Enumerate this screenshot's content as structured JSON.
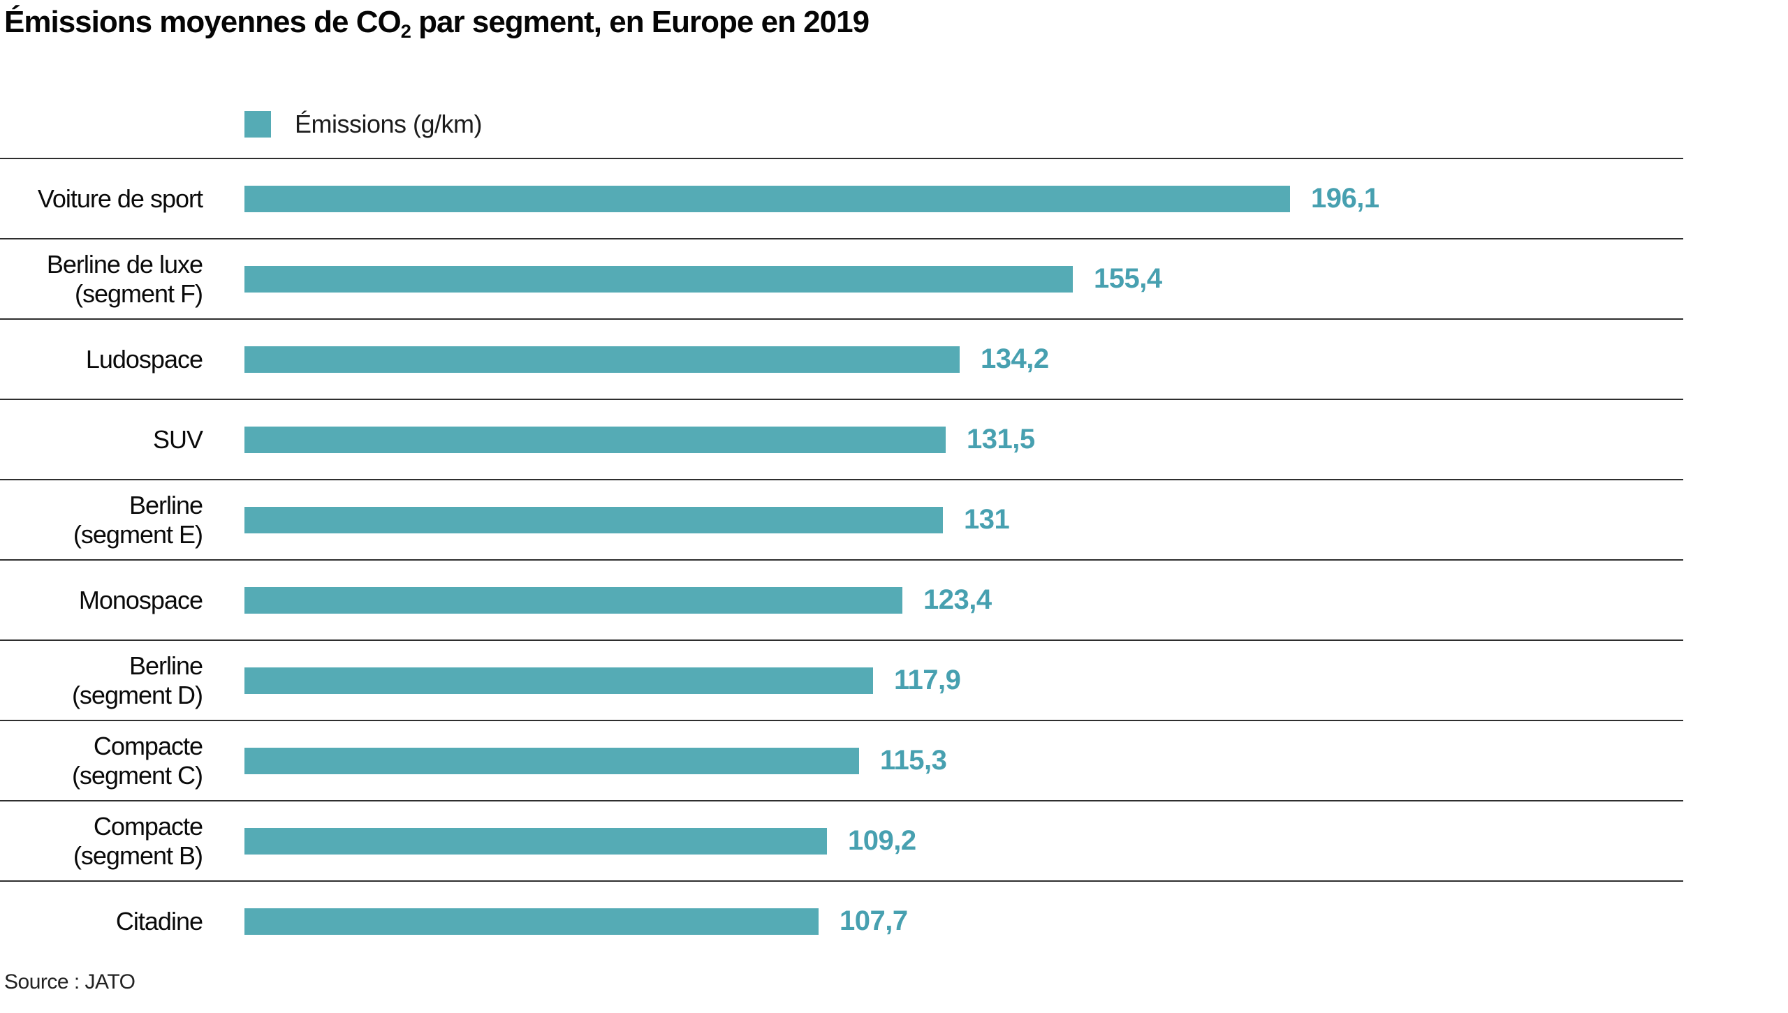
{
  "title": {
    "prefix": "Émissions moyennes de CO",
    "sub": "2",
    "suffix": " par segment, en Europe en 2019"
  },
  "legend": {
    "label": "Émissions (g/km)"
  },
  "source": "Source : JATO",
  "colors": {
    "bar": "#55abb5",
    "value_text": "#47a0b0",
    "separator": "#2e2e2e"
  },
  "chart_data": {
    "type": "bar",
    "orientation": "horizontal",
    "title": "Émissions moyennes de CO2 par segment, en Europe en 2019",
    "legend_entries": [
      "Émissions (g/km)"
    ],
    "unit": "g/km",
    "xlim": [
      0,
      270
    ],
    "grid": "row-separators-only",
    "legend_position": "top",
    "categories": [
      "Voiture de sport",
      "Berline de luxe\n(segment F)",
      "Ludospace",
      "SUV",
      "Berline\n(segment E)",
      "Monospace",
      "Berline\n(segment D)",
      "Compacte\n(segment C)",
      "Compacte\n(segment B)",
      "Citadine"
    ],
    "values": [
      196.1,
      155.4,
      134.2,
      131.5,
      131,
      123.4,
      117.9,
      115.3,
      109.2,
      107.7
    ],
    "value_labels": [
      "196,1",
      "155,4",
      "134,2",
      "131,5",
      "131",
      "123,4",
      "117,9",
      "115,3",
      "109,2",
      "107,7"
    ],
    "source": "Source : JATO"
  }
}
